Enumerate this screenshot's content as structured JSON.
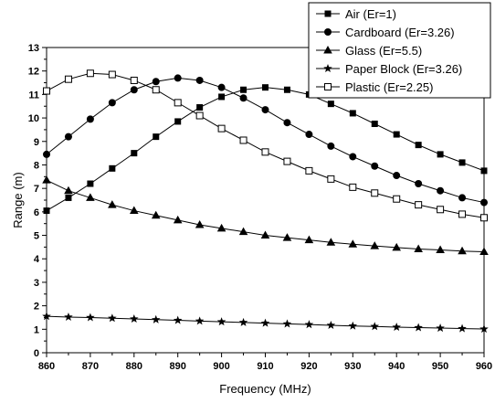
{
  "chart_data": {
    "type": "line",
    "xlabel": "Frequency (MHz)",
    "ylabel": "Range (m)",
    "xlim": [
      860,
      960
    ],
    "ylim": [
      0,
      13
    ],
    "xticks": [
      860,
      870,
      880,
      890,
      900,
      910,
      920,
      930,
      940,
      950,
      960
    ],
    "yticks": [
      0,
      1,
      2,
      3,
      4,
      5,
      6,
      7,
      8,
      9,
      10,
      11,
      12,
      13
    ],
    "legend_position": "top-right",
    "x": [
      860,
      865,
      870,
      875,
      880,
      885,
      890,
      895,
      900,
      905,
      910,
      915,
      920,
      925,
      930,
      935,
      940,
      945,
      950,
      955,
      960
    ],
    "series": [
      {
        "name": "Air (Er=1)",
        "marker": "square-filled",
        "values": [
          6.05,
          6.6,
          7.2,
          7.85,
          8.5,
          9.2,
          9.85,
          10.45,
          10.9,
          11.2,
          11.3,
          11.2,
          11.0,
          10.6,
          10.2,
          9.75,
          9.3,
          8.85,
          8.45,
          8.1,
          7.75
        ]
      },
      {
        "name": "Cardboard (Er=3.26)",
        "marker": "circle-filled",
        "values": [
          8.45,
          9.2,
          9.95,
          10.65,
          11.2,
          11.55,
          11.7,
          11.6,
          11.3,
          10.85,
          10.35,
          9.8,
          9.3,
          8.8,
          8.35,
          7.95,
          7.55,
          7.2,
          6.9,
          6.6,
          6.4
        ]
      },
      {
        "name": "Glass (Er=5.5)",
        "marker": "triangle-filled",
        "values": [
          7.35,
          6.9,
          6.6,
          6.3,
          6.05,
          5.85,
          5.65,
          5.45,
          5.3,
          5.15,
          5.0,
          4.9,
          4.8,
          4.7,
          4.62,
          4.55,
          4.48,
          4.42,
          4.38,
          4.33,
          4.3
        ]
      },
      {
        "name": "Paper Block (Er=3.26)",
        "marker": "star-filled",
        "values": [
          1.55,
          1.52,
          1.5,
          1.47,
          1.44,
          1.41,
          1.38,
          1.35,
          1.32,
          1.29,
          1.26,
          1.23,
          1.2,
          1.17,
          1.14,
          1.12,
          1.09,
          1.07,
          1.05,
          1.03,
          1.01
        ]
      },
      {
        "name": "Plastic (Er=2.25)",
        "marker": "square-open",
        "values": [
          11.15,
          11.65,
          11.9,
          11.85,
          11.6,
          11.2,
          10.65,
          10.1,
          9.55,
          9.05,
          8.55,
          8.15,
          7.75,
          7.4,
          7.05,
          6.8,
          6.55,
          6.3,
          6.1,
          5.9,
          5.75
        ]
      }
    ]
  }
}
